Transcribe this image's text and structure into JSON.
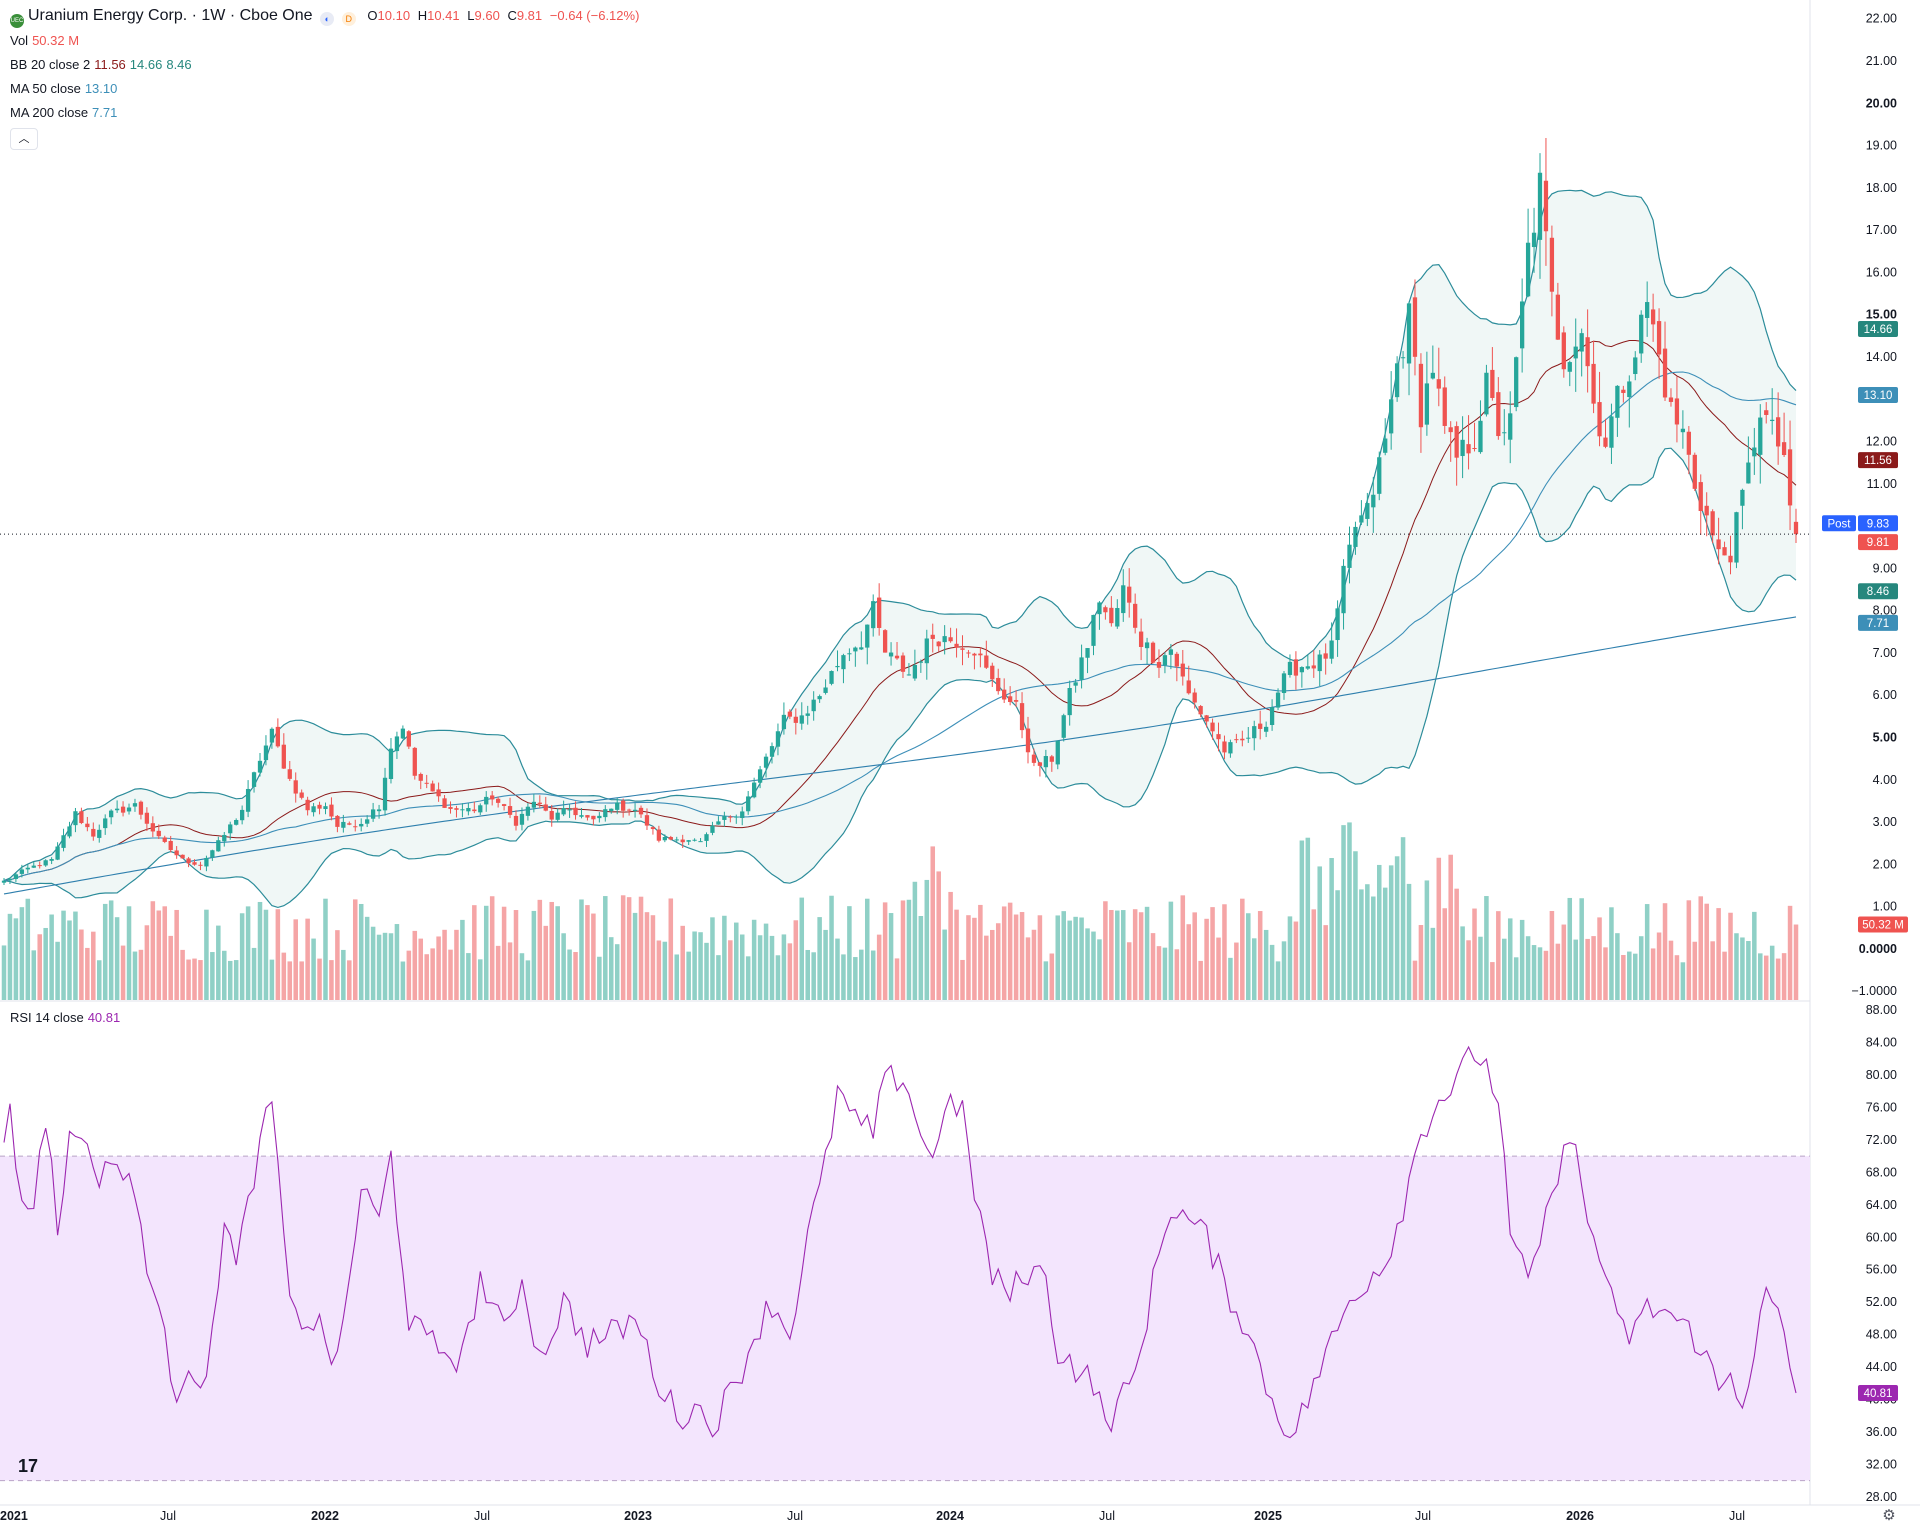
{
  "header": {
    "logo_text": "UEC",
    "title": "Uranium Energy Corp. · 1W · Cboe One",
    "badge_1": "◐",
    "badge_2": "D",
    "o_label": "O",
    "o_value": "10.10",
    "h_label": "H",
    "h_value": "10.41",
    "l_label": "L",
    "l_value": "9.60",
    "c_label": "C",
    "c_value": "9.81",
    "change": "−0.64 (−6.12%)"
  },
  "legend": {
    "vol_label": "Vol",
    "vol_value": "50.32 M",
    "bb_label": "BB 20 close 2",
    "bb_basis": "11.56",
    "bb_upper": "14.66",
    "bb_lower": "8.46",
    "ma50_label": "MA 50 close",
    "ma50_value": "13.10",
    "ma200_label": "MA 200 close",
    "ma200_value": "7.71",
    "rsi_label": "RSI 14 close",
    "rsi_value": "40.81",
    "collapse_icon": "chevron-up"
  },
  "colors": {
    "up": "#26a69a",
    "down": "#ef5350",
    "vol_up": "#8fd0c6",
    "vol_down": "#f5a5a6",
    "bb_band": "#2c8c9a",
    "bb_basis": "#8b1a1a",
    "bb_fill": "#eef6f5",
    "ma50": "#3d8fb8",
    "ma200": "#2e7fad",
    "rsi": "#9c27b0",
    "rsi_band": "#f3e5fd",
    "post": "#2962ff"
  },
  "price_axis_labels": [
    "22.00",
    "21.00",
    "20.00",
    "19.00",
    "18.00",
    "17.00",
    "16.00",
    "15.00",
    "14.00",
    "13.00",
    "12.00",
    "11.00",
    "10.00",
    "9.00",
    "8.00",
    "7.00",
    "6.00",
    "5.00",
    "4.00",
    "3.00",
    "2.00",
    "1.00",
    "0.0000",
    "−1.0000"
  ],
  "rsi_axis_labels": [
    "88.00",
    "84.00",
    "80.00",
    "76.00",
    "72.00",
    "68.00",
    "64.00",
    "60.00",
    "56.00",
    "52.00",
    "48.00",
    "44.00",
    "40.00",
    "36.00",
    "32.00",
    "28.00"
  ],
  "price_tags": [
    {
      "text": "14.66",
      "value": 14.66,
      "color": "#26877d"
    },
    {
      "text": "13.10",
      "value": 13.1,
      "color": "#3d8fb8"
    },
    {
      "text": "11.56",
      "value": 11.56,
      "color": "#8b1a1a"
    },
    {
      "text": "9.83",
      "value": 9.83,
      "color": "#2962ff",
      "prefix": "Post"
    },
    {
      "text": "9.81",
      "value": 9.81,
      "color": "#ef5350"
    },
    {
      "text": "8.46",
      "value": 8.46,
      "color": "#26877d"
    },
    {
      "text": "7.71",
      "value": 7.71,
      "color": "#3d8fb8"
    }
  ],
  "vol_tag": {
    "text": "50.32 M",
    "color": "#ef5350"
  },
  "rsi_tag": {
    "text": "40.81",
    "value": 40.81,
    "color": "#9c27b0"
  },
  "time_axis": [
    "2021",
    "Jul",
    "2022",
    "Jul",
    "2023",
    "Jul",
    "2024",
    "Jul",
    "2025",
    "Jul",
    "2026",
    "Jul"
  ],
  "chart_data": {
    "type": "candlestick",
    "interval": "1W",
    "x_range": [
      "2021-01",
      "2026-09"
    ],
    "price_ylim": [
      -1.35,
      22.3
    ],
    "rsi_ylim": [
      27,
      89
    ],
    "rsi_levels": [
      70,
      30
    ],
    "price_anchors": [
      [
        0,
        1.6
      ],
      [
        4,
        1.9
      ],
      [
        8,
        2.1
      ],
      [
        12,
        3.2
      ],
      [
        15,
        2.7
      ],
      [
        18,
        3.2
      ],
      [
        22,
        3.4
      ],
      [
        26,
        2.6
      ],
      [
        30,
        2.1
      ],
      [
        33,
        2.0
      ],
      [
        36,
        2.5
      ],
      [
        40,
        3.3
      ],
      [
        43,
        4.5
      ],
      [
        45,
        5.1
      ],
      [
        48,
        4.0
      ],
      [
        51,
        3.3
      ],
      [
        54,
        3.4
      ],
      [
        56,
        2.9
      ],
      [
        60,
        3.0
      ],
      [
        63,
        3.4
      ],
      [
        65,
        4.8
      ],
      [
        67,
        5.3
      ],
      [
        69,
        4.1
      ],
      [
        72,
        3.7
      ],
      [
        75,
        3.3
      ],
      [
        79,
        3.3
      ],
      [
        82,
        3.6
      ],
      [
        86,
        3.0
      ],
      [
        89,
        3.5
      ],
      [
        92,
        3.1
      ],
      [
        95,
        3.3
      ],
      [
        99,
        3.0
      ],
      [
        102,
        3.4
      ],
      [
        106,
        3.3
      ],
      [
        110,
        2.6
      ],
      [
        113,
        2.6
      ],
      [
        115,
        2.6
      ],
      [
        117,
        2.5
      ],
      [
        120,
        3.0
      ],
      [
        124,
        3.3
      ],
      [
        128,
        4.5
      ],
      [
        131,
        5.4
      ],
      [
        134,
        5.5
      ],
      [
        137,
        6.0
      ],
      [
        141,
        7.0
      ],
      [
        144,
        7.3
      ],
      [
        146,
        8.0
      ],
      [
        148,
        7.0
      ],
      [
        152,
        6.5
      ],
      [
        156,
        7.4
      ],
      [
        160,
        7.3
      ],
      [
        163,
        7.1
      ],
      [
        166,
        6.3
      ],
      [
        170,
        5.7
      ],
      [
        173,
        4.3
      ],
      [
        176,
        4.5
      ],
      [
        179,
        6.0
      ],
      [
        182,
        7.2
      ],
      [
        184,
        8.3
      ],
      [
        186,
        7.6
      ],
      [
        188,
        8.5
      ],
      [
        191,
        7.3
      ],
      [
        194,
        6.8
      ],
      [
        196,
        7.1
      ],
      [
        199,
        6.0
      ],
      [
        202,
        5.4
      ],
      [
        205,
        4.7
      ],
      [
        208,
        4.9
      ],
      [
        212,
        5.4
      ],
      [
        214,
        6.1
      ],
      [
        216,
        6.6
      ],
      [
        218,
        6.7
      ],
      [
        221,
        6.8
      ],
      [
        223,
        7.1
      ],
      [
        225,
        8.8
      ],
      [
        227,
        10.0
      ],
      [
        229,
        10.3
      ],
      [
        232,
        12.0
      ],
      [
        234,
        13.8
      ],
      [
        236,
        14.9
      ],
      [
        238,
        12.7
      ],
      [
        240,
        13.8
      ],
      [
        242,
        12.2
      ],
      [
        244,
        11.6
      ],
      [
        247,
        12.1
      ],
      [
        249,
        13.3
      ],
      [
        251,
        12.3
      ],
      [
        253,
        12.4
      ],
      [
        256,
        16.5
      ],
      [
        258,
        18.0
      ],
      [
        260,
        15.3
      ],
      [
        262,
        14.0
      ],
      [
        265,
        14.7
      ],
      [
        267,
        12.9
      ],
      [
        269,
        12.0
      ],
      [
        271,
        13.0
      ],
      [
        274,
        14.2
      ],
      [
        276,
        15.3
      ],
      [
        278,
        14.0
      ],
      [
        280,
        12.7
      ],
      [
        282,
        12.2
      ],
      [
        284,
        11.0
      ],
      [
        286,
        10.2
      ],
      [
        288,
        9.3
      ],
      [
        290,
        9.4
      ],
      [
        293,
        11.3
      ],
      [
        295,
        12.8
      ],
      [
        297,
        12.2
      ],
      [
        299,
        11.7
      ],
      [
        300,
        10.2
      ],
      [
        301,
        9.81
      ]
    ],
    "rsi_anchors": [
      [
        0,
        72
      ],
      [
        1,
        77
      ],
      [
        3,
        63
      ],
      [
        5,
        65
      ],
      [
        7,
        75
      ],
      [
        9,
        61
      ],
      [
        11,
        72
      ],
      [
        13,
        74
      ],
      [
        15,
        67
      ],
      [
        18,
        70
      ],
      [
        22,
        65
      ],
      [
        26,
        50
      ],
      [
        29,
        41
      ],
      [
        31,
        45
      ],
      [
        34,
        41
      ],
      [
        37,
        63
      ],
      [
        39,
        56
      ],
      [
        42,
        68
      ],
      [
        45,
        77
      ],
      [
        48,
        51
      ],
      [
        53,
        49
      ],
      [
        56,
        44
      ],
      [
        60,
        66
      ],
      [
        63,
        62
      ],
      [
        65,
        70
      ],
      [
        68,
        50
      ],
      [
        71,
        47
      ],
      [
        74,
        46
      ],
      [
        77,
        45
      ],
      [
        80,
        55
      ],
      [
        84,
        48
      ],
      [
        87,
        55
      ],
      [
        90,
        45
      ],
      [
        94,
        52
      ],
      [
        98,
        47
      ],
      [
        102,
        48
      ],
      [
        106,
        50
      ],
      [
        110,
        42
      ],
      [
        113,
        38
      ],
      [
        116,
        39
      ],
      [
        119,
        37
      ],
      [
        123,
        42
      ],
      [
        126,
        48
      ],
      [
        129,
        52
      ],
      [
        132,
        48
      ],
      [
        135,
        60
      ],
      [
        138,
        69
      ],
      [
        140,
        78
      ],
      [
        143,
        74
      ],
      [
        146,
        73
      ],
      [
        148,
        79
      ],
      [
        151,
        80
      ],
      [
        154,
        73
      ],
      [
        156,
        69
      ],
      [
        158,
        77
      ],
      [
        161,
        75
      ],
      [
        163,
        66
      ],
      [
        166,
        55
      ],
      [
        169,
        53
      ],
      [
        172,
        56
      ],
      [
        175,
        55
      ],
      [
        177,
        46
      ],
      [
        180,
        44
      ],
      [
        183,
        42
      ],
      [
        185,
        37
      ],
      [
        187,
        39
      ],
      [
        190,
        43
      ],
      [
        194,
        58
      ],
      [
        196,
        64
      ],
      [
        199,
        62
      ],
      [
        202,
        60
      ],
      [
        205,
        54
      ],
      [
        208,
        50
      ],
      [
        211,
        44
      ],
      [
        214,
        38
      ],
      [
        217,
        36
      ],
      [
        220,
        42
      ],
      [
        223,
        47
      ],
      [
        226,
        52
      ],
      [
        229,
        55
      ],
      [
        232,
        57
      ],
      [
        235,
        64
      ],
      [
        238,
        73
      ],
      [
        241,
        77
      ],
      [
        244,
        79
      ],
      [
        247,
        83
      ],
      [
        249,
        81
      ],
      [
        251,
        77
      ],
      [
        253,
        60
      ],
      [
        256,
        54
      ],
      [
        258,
        60
      ],
      [
        260,
        64
      ],
      [
        262,
        73
      ],
      [
        264,
        70
      ],
      [
        266,
        62
      ],
      [
        268,
        58
      ],
      [
        271,
        49
      ],
      [
        273,
        48
      ],
      [
        276,
        51
      ],
      [
        279,
        51
      ],
      [
        282,
        49
      ],
      [
        285,
        47
      ],
      [
        288,
        41
      ],
      [
        290,
        43
      ],
      [
        292,
        40
      ],
      [
        294,
        46
      ],
      [
        296,
        53
      ],
      [
        298,
        50
      ],
      [
        300,
        44
      ],
      [
        301,
        40.81
      ]
    ]
  }
}
